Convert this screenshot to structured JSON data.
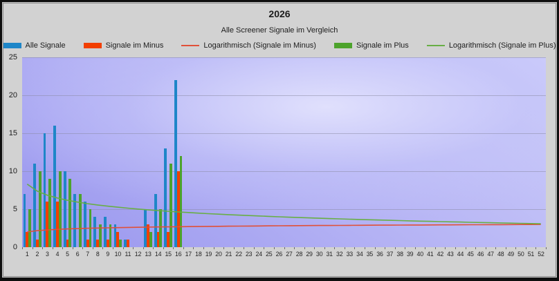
{
  "header": {
    "title": "2026",
    "subtitle": "Alle Screener Signale im Vergleich"
  },
  "legend": {
    "items": [
      {
        "label": "Alle Signale",
        "swatch": "box",
        "color": "#1e86c8"
      },
      {
        "label": "Signale im Minus",
        "swatch": "box",
        "color": "#f23f00"
      },
      {
        "label": "Logarithmisch (Signale im Minus)",
        "swatch": "line",
        "color": "#e05038"
      },
      {
        "label": "Signale im Plus",
        "swatch": "box",
        "color": "#4da32c"
      },
      {
        "label": "Logarithmisch (Signale im Plus)",
        "swatch": "line",
        "color": "#68ae45"
      }
    ]
  },
  "chart_data": {
    "type": "bar",
    "title": "2026",
    "subtitle": "Alle Screener Signale im Vergleich",
    "legend_position": "top",
    "grid": "horizontal",
    "ylim": [
      0,
      25
    ],
    "yticks": [
      0,
      5,
      10,
      15,
      20,
      25
    ],
    "categories": [
      1,
      2,
      3,
      4,
      5,
      6,
      7,
      8,
      9,
      10,
      11,
      12,
      13,
      14,
      15,
      16,
      17,
      18,
      19,
      20,
      21,
      22,
      23,
      24,
      25,
      26,
      27,
      28,
      29,
      30,
      31,
      32,
      33,
      34,
      35,
      36,
      37,
      38,
      39,
      40,
      41,
      42,
      43,
      44,
      45,
      46,
      47,
      48,
      49,
      50,
      51,
      52
    ],
    "series": [
      {
        "name": "Alle Signale",
        "type": "bar",
        "color": "#1e86c8",
        "values": [
          7,
          11,
          15,
          16,
          10,
          7,
          6,
          4,
          4,
          3,
          1,
          0,
          5,
          7,
          13,
          22,
          0,
          0,
          0,
          0,
          0,
          0,
          0,
          0,
          0,
          0,
          0,
          0,
          0,
          0,
          0,
          0,
          0,
          0,
          0,
          0,
          0,
          0,
          0,
          0,
          0,
          0,
          0,
          0,
          0,
          0,
          0,
          0,
          0,
          0,
          0,
          0
        ]
      },
      {
        "name": "Signale im Minus",
        "type": "bar",
        "color": "#f23f00",
        "values": [
          2,
          1,
          6,
          6,
          1,
          0,
          1,
          1,
          1,
          2,
          1,
          0,
          3,
          2,
          2,
          10,
          0,
          0,
          0,
          0,
          0,
          0,
          0,
          0,
          0,
          0,
          0,
          0,
          0,
          0,
          0,
          0,
          0,
          0,
          0,
          0,
          0,
          0,
          0,
          0,
          0,
          0,
          0,
          0,
          0,
          0,
          0,
          0,
          0,
          0,
          0,
          0
        ]
      },
      {
        "name": "Signale im Plus",
        "type": "bar",
        "color": "#4da32c",
        "values": [
          5,
          10,
          9,
          10,
          9,
          7,
          5,
          3,
          3,
          1,
          0,
          0,
          2,
          5,
          11,
          12,
          0,
          0,
          0,
          0,
          0,
          0,
          0,
          0,
          0,
          0,
          0,
          0,
          0,
          0,
          0,
          0,
          0,
          0,
          0,
          0,
          0,
          0,
          0,
          0,
          0,
          0,
          0,
          0,
          0,
          0,
          0,
          0,
          0,
          0,
          0,
          0
        ]
      },
      {
        "name": "Logarithmisch (Signale im Minus)",
        "type": "log_trend",
        "color": "#e05038",
        "formula": "y = 2.0 + 0.25*ln(x)",
        "a": 2.0,
        "b": 0.25
      },
      {
        "name": "Logarithmisch (Signale im Plus)",
        "type": "log_trend",
        "color": "#68ae45",
        "formula": "y = 8.3 - 1.32*ln(x)",
        "a": 8.3,
        "b": -1.32
      }
    ]
  }
}
